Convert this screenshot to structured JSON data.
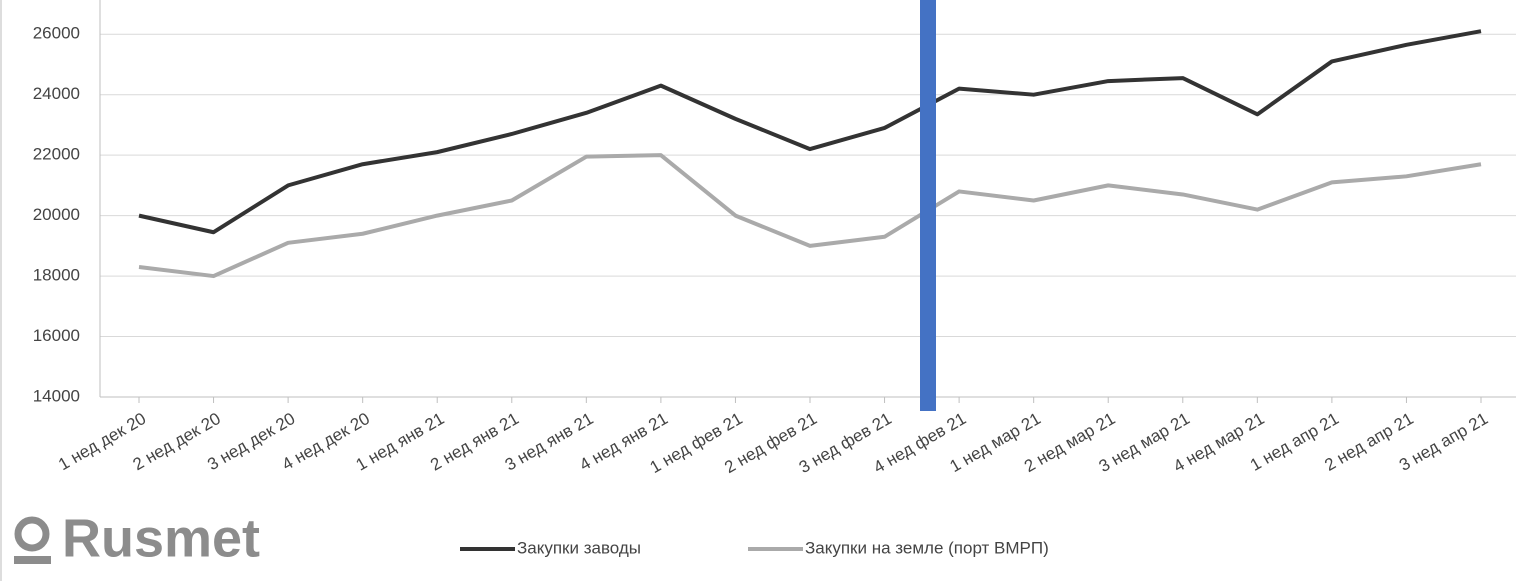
{
  "chart_data": {
    "type": "line",
    "categories": [
      "1 нед дек 20",
      "2 нед дек 20",
      "3 нед дек 20",
      "4 нед дек 20",
      "1 нед янв 21",
      "2 нед янв 21",
      "3 нед янв 21",
      "4 нед янв 21",
      "1 нед фев 21",
      "2 нед фев 21",
      "3 нед фев 21",
      "4 нед фев 21",
      "1 нед мар 21",
      "2 нед мар 21",
      "3 нед мар 21",
      "4 нед мар 21",
      "1 нед апр 21",
      "2 нед апр 21",
      "3 нед апр 21"
    ],
    "series": [
      {
        "name": "Закупки заводы",
        "color": "#333333",
        "values": [
          20000,
          19450,
          21000,
          21700,
          22100,
          22700,
          23400,
          24300,
          23200,
          22200,
          22900,
          24200,
          24000,
          24450,
          24550,
          23350,
          25100,
          25650,
          26100
        ]
      },
      {
        "name": "Закупки на земле (порт ВМРП)",
        "color": "#aaaaaa",
        "values": [
          18300,
          18000,
          19100,
          19400,
          20000,
          20500,
          21950,
          22000,
          20000,
          19000,
          19300,
          20800,
          20500,
          21000,
          20700,
          20200,
          21100,
          21300,
          21700
        ]
      }
    ],
    "ylim": [
      14000,
      27000
    ],
    "yticks": [
      14000,
      16000,
      18000,
      20000,
      22000,
      24000,
      26000
    ],
    "grid": true,
    "legend": "bottom"
  },
  "logo": "Rusmet"
}
